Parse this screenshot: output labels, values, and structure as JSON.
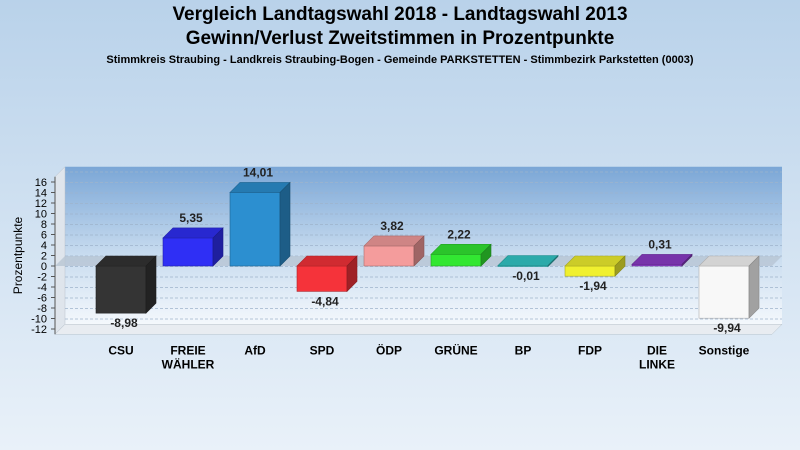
{
  "chart_data": {
    "type": "bar",
    "title": "Vergleich Landtagswahl 2018 - Landtagswahl 2013",
    "subtitle": "Gewinn/Verlust Zweitstimmen in Prozentpunkte",
    "subtitle2": "Stimmkreis Straubing - Landkreis Straubing-Bogen - Gemeinde PARKSTETTEN - Stimmbezirk Parkstetten (0003)",
    "ylabel": "Prozentpunkte",
    "xlabel": "",
    "ylim": [
      -13,
      17
    ],
    "yticks": [
      "16",
      "14",
      "12",
      "10",
      "8",
      "6",
      "4",
      "2",
      "0",
      "-2",
      "-4",
      "-6",
      "-8",
      "-10",
      "-12"
    ],
    "grid": true,
    "categories": [
      "CSU",
      "FREIE WÄHLER",
      "AfD",
      "SPD",
      "ÖDP",
      "GRÜNE",
      "BP",
      "FDP",
      "DIE LINKE",
      "Sonstige"
    ],
    "values": [
      -8.98,
      5.35,
      14.01,
      -4.84,
      3.82,
      2.22,
      -0.01,
      -1.94,
      0.31,
      -9.94
    ],
    "value_labels": [
      "-8,98",
      "5,35",
      "14,01",
      "-4,84",
      "3,82",
      "2,22",
      "-0,01",
      "-1,94",
      "0,31",
      "-9,94"
    ],
    "colors": [
      "#343434",
      "#2f2ff5",
      "#2c8fd0",
      "#f5333a",
      "#f49c9c",
      "#32e732",
      "#32c8c8",
      "#f0f02f",
      "#8c3cc8",
      "#f8f8f8"
    ]
  }
}
